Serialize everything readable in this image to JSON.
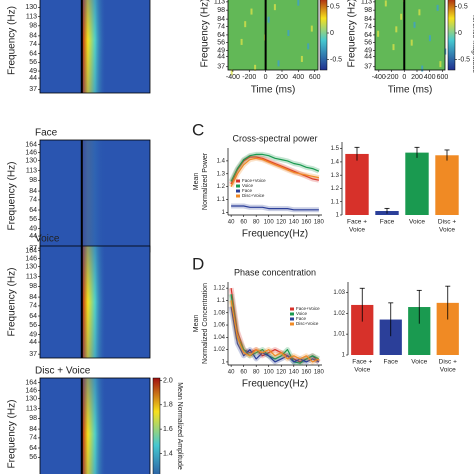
{
  "chart_data": [
    {
      "type": "heatmap",
      "ylabel": "Frequency (Hz)",
      "yscale": "log",
      "ylim": [
        35,
        175
      ],
      "yticks": [
        130,
        113,
        98,
        84,
        74,
        64,
        56,
        49,
        44,
        37
      ]
    },
    {
      "type": "heatmap",
      "title": "Face",
      "ylabel": "Frequency (Hz)",
      "yscale": "log",
      "ylim": [
        35,
        175
      ],
      "yticks": [
        164,
        146,
        130,
        113,
        98,
        84,
        74,
        64,
        56,
        49,
        44,
        37
      ]
    },
    {
      "type": "heatmap",
      "title": "Voice",
      "ylabel": "Frequency (Hz)",
      "yscale": "log",
      "ylim": [
        35,
        175
      ],
      "yticks": [
        164,
        146,
        130,
        113,
        98,
        84,
        74,
        64,
        56,
        49,
        44,
        37
      ]
    },
    {
      "type": "heatmap",
      "title": "Disc + Voice",
      "ylabel": "Frequency (Hz)",
      "yscale": "log",
      "ylim": [
        35,
        175
      ],
      "yticks": [
        164,
        146,
        130,
        113,
        98,
        84,
        74,
        64,
        56
      ],
      "colorbar_label": "Mean Normalized Amplitude",
      "colorbar_lim": [
        1.1,
        2.02
      ],
      "colorbar_ticks": [
        {
          "value": 2,
          "label": "2.0"
        },
        1.8,
        1.6,
        1.4,
        1.2
      ]
    },
    {
      "type": "heatmap",
      "ylabel": "Frequency (Hz)",
      "xlabel": "Time (ms)",
      "yscale": "log",
      "ylim": [
        35,
        125
      ],
      "yticks": [
        113,
        98,
        84,
        74,
        64,
        56,
        49,
        44,
        37
      ],
      "xlim": [
        -460,
        640
      ],
      "xticks": [
        -400,
        -200,
        0,
        200,
        400,
        600
      ],
      "colorbar_lim": [
        -0.7,
        0.7
      ],
      "colorbar_ticks": [
        0.5,
        0,
        -0.5
      ]
    },
    {
      "type": "heatmap",
      "ylabel": "Frequency (Hz)",
      "xlabel": "Time (ms)",
      "yscale": "log",
      "ylim": [
        35,
        125
      ],
      "yticks": [
        113,
        98,
        84,
        74,
        64,
        56,
        49,
        44,
        37
      ],
      "xlim": [
        -460,
        640
      ],
      "xticks": [
        -400,
        -200,
        0,
        200,
        400,
        600
      ],
      "colorbar_label": "ference Magnitude",
      "colorbar_lim": [
        -0.7,
        0.7
      ],
      "colorbar_ticks": [
        0.5,
        0,
        -0.5
      ]
    },
    {
      "type": "line",
      "letter": "C",
      "title": "Cross-spectral power",
      "ylabel": [
        "Mean",
        "Normalized Power"
      ],
      "xlabel": "Frequency(Hz)",
      "xlim": [
        35,
        185
      ],
      "xticks": [
        40,
        60,
        80,
        100,
        120,
        140,
        160,
        180
      ],
      "ylim": [
        0.98,
        1.5
      ],
      "yticks": [
        1,
        1.1,
        1.2,
        1.3,
        1.4
      ],
      "x": [
        40,
        50,
        60,
        70,
        80,
        90,
        100,
        110,
        120,
        130,
        140,
        150,
        160,
        170,
        180
      ],
      "series": [
        {
          "name": "Face+Voice",
          "color": "#d7312a",
          "values": [
            1.22,
            1.33,
            1.4,
            1.43,
            1.43,
            1.42,
            1.4,
            1.38,
            1.36,
            1.34,
            1.32,
            1.3,
            1.28,
            1.26,
            1.25
          ]
        },
        {
          "name": "Voice",
          "color": "#1a9a50",
          "values": [
            1.24,
            1.34,
            1.41,
            1.44,
            1.45,
            1.45,
            1.44,
            1.42,
            1.41,
            1.4,
            1.38,
            1.37,
            1.35,
            1.34,
            1.32
          ]
        },
        {
          "name": "Face",
          "color": "#2b3f99",
          "values": [
            1.05,
            1.05,
            1.05,
            1.04,
            1.04,
            1.04,
            1.03,
            1.03,
            1.03,
            1.03,
            1.02,
            1.02,
            1.02,
            1.02,
            1.02
          ]
        },
        {
          "name": "Disc+Voice",
          "color": "#f08a24",
          "values": [
            1.2,
            1.3,
            1.37,
            1.41,
            1.42,
            1.41,
            1.39,
            1.37,
            1.35,
            1.33,
            1.31,
            1.3,
            1.29,
            1.28,
            1.27
          ]
        }
      ]
    },
    {
      "type": "bar",
      "categories": [
        [
          "Face +",
          "Voice"
        ],
        [
          "Face"
        ],
        [
          "Voice"
        ],
        [
          "Disc +",
          "Voice"
        ]
      ],
      "values": [
        1.46,
        1.03,
        1.47,
        1.45
      ],
      "errors": [
        0.05,
        0.02,
        0.04,
        0.04
      ],
      "colors": [
        "#d7312a",
        "#2b3f99",
        "#1a9a50",
        "#f08a24"
      ],
      "ylim": [
        1,
        1.55
      ],
      "yticks": [
        1,
        1.1,
        1.2,
        1.3,
        1.4,
        1.5
      ]
    },
    {
      "type": "line",
      "letter": "D",
      "title": "Phase concentration",
      "ylabel": [
        "Mean",
        "Normalized Concentration"
      ],
      "xlabel": "Frequency(Hz)",
      "xlim": [
        35,
        185
      ],
      "xticks": [
        40,
        60,
        80,
        100,
        120,
        140,
        160,
        180
      ],
      "ylim": [
        0.995,
        1.13
      ],
      "yticks": [
        1,
        1.02,
        1.04,
        1.06,
        1.08,
        1.1,
        1.12
      ],
      "x": [
        40,
        50,
        60,
        70,
        80,
        90,
        100,
        110,
        120,
        130,
        140,
        150,
        160,
        170,
        180
      ],
      "series": [
        {
          "name": "Face+Voice",
          "color": "#d7312a",
          "values": [
            1.12,
            1.05,
            1.02,
            1.015,
            1.02,
            1.01,
            1.015,
            1.02,
            1.015,
            1.01,
            1.005,
            1.0,
            1.005,
            1.01,
            1.0
          ]
        },
        {
          "name": "Voice",
          "color": "#1a9a50",
          "values": [
            1.11,
            1.04,
            1.02,
            1.01,
            1.015,
            1.02,
            1.01,
            1.005,
            1.01,
            1.02,
            1.0,
            0.998,
            1.005,
            1.01,
            1.005
          ]
        },
        {
          "name": "Face",
          "color": "#2b3f99",
          "values": [
            1.09,
            1.03,
            1.01,
            1.02,
            1.005,
            1.015,
            1.01,
            1.0,
            1.005,
            1.01,
            1.0,
            1.005,
            1.0,
            1.005,
            1.0
          ]
        },
        {
          "name": "Disc+Voice",
          "color": "#f08a24",
          "values": [
            1.1,
            1.04,
            1.015,
            1.01,
            1.02,
            1.015,
            1.02,
            1.01,
            1.015,
            1.005,
            1.01,
            1.005,
            1.01,
            1.0,
            1.005
          ]
        }
      ]
    },
    {
      "type": "bar",
      "categories": [
        [
          "Face +",
          "Voice"
        ],
        [
          "Face"
        ],
        [
          "Voice"
        ],
        [
          "Disc +",
          "Voice"
        ]
      ],
      "values": [
        1.024,
        1.017,
        1.023,
        1.025
      ],
      "errors": [
        0.008,
        0.008,
        0.008,
        0.008
      ],
      "colors": [
        "#d7312a",
        "#2b3f99",
        "#1a9a50",
        "#f08a24"
      ],
      "ylim": [
        1,
        1.035
      ],
      "yticks": [
        1,
        1.01,
        1.02,
        1.03
      ]
    }
  ]
}
